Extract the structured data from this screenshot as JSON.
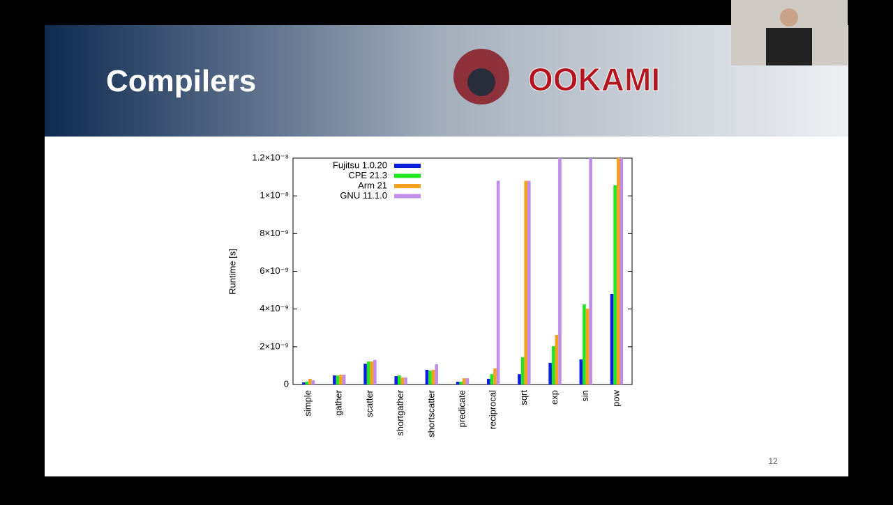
{
  "slide": {
    "title": "Compilers",
    "logo": "OOKAMI",
    "page_number": "12"
  },
  "chart_data": {
    "type": "bar",
    "y_label": "Runtime [s]",
    "categories": [
      "simple",
      "gather",
      "scatter",
      "shortgather",
      "shortscatter",
      "predicate",
      "reciprocal",
      "sqrt",
      "exp",
      "sin",
      "pow"
    ],
    "series": [
      {
        "name": "Fujitsu 1.0.20",
        "color": "#0a1ee0",
        "values": [
          1.1e-10,
          4.8e-10,
          1.1e-09,
          4.4e-10,
          7.8e-10,
          1.5e-10,
          3e-10,
          5.5e-10,
          1.15e-09,
          1.33e-09,
          4.8e-09
        ]
      },
      {
        "name": "CPE 21.3",
        "color": "#22e622",
        "values": [
          1.5e-10,
          4.8e-10,
          1.22e-09,
          4.8e-10,
          7.4e-10,
          1.5e-10,
          5.5e-10,
          1.45e-09,
          2.03e-09,
          4.25e-09,
          1.056e-08
        ]
      },
      {
        "name": "Arm 21",
        "color": "#f5a01e",
        "values": [
          3e-10,
          5.2e-10,
          1.22e-09,
          3.7e-10,
          7.8e-10,
          3.3e-10,
          8.5e-10,
          1.08e-08,
          2.62e-09,
          4.02e-09,
          1.2e-08
        ]
      },
      {
        "name": "GNU 11.1.0",
        "color": "#c08ee8",
        "values": [
          2.2e-10,
          5.2e-10,
          1.3e-09,
          3.7e-10,
          1.07e-09,
          3.3e-10,
          1.08e-08,
          1.08e-08,
          1.2e-08,
          1.2e-08,
          1.2e-08
        ]
      }
    ],
    "ylim": [
      0,
      1.2e-08
    ],
    "yticks": [
      0,
      {
        "value": 2e-09,
        "label": "2×10⁻⁹"
      },
      {
        "value": 4e-09,
        "label": "4×10⁻⁹"
      },
      {
        "value": 6e-09,
        "label": "6×10⁻⁹"
      },
      {
        "value": 8e-09,
        "label": "8×10⁻⁹"
      },
      {
        "value": 1e-08,
        "label": "1×10⁻⁸"
      },
      {
        "value": 1.2e-08,
        "label": "1.2×10⁻⁸"
      }
    ],
    "legend": "top-left"
  }
}
